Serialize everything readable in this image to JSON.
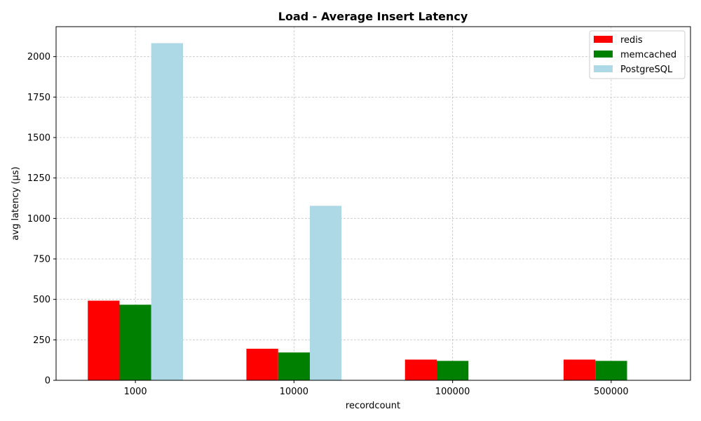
{
  "chart_data": {
    "type": "bar",
    "title": "Load - Average Insert Latency",
    "xlabel": "recordcount",
    "ylabel": "avg latency (µs)",
    "categories": [
      "1000",
      "10000",
      "100000",
      "500000"
    ],
    "series": [
      {
        "name": "redis",
        "color": "#ff0000",
        "values": [
          492,
          195,
          128,
          128
        ]
      },
      {
        "name": "memcached",
        "color": "#008000",
        "values": [
          467,
          172,
          120,
          120
        ]
      },
      {
        "name": "PostgreSQL",
        "color": "#add8e6",
        "values": [
          2083,
          1078,
          null,
          null
        ]
      }
    ],
    "ylim": [
      0,
      2185
    ],
    "yticks": [
      0,
      250,
      500,
      750,
      1000,
      1250,
      1500,
      1750,
      2000
    ],
    "grid": true,
    "legend_position": "top-right"
  }
}
